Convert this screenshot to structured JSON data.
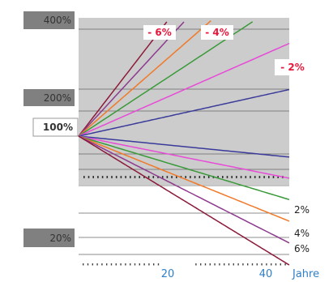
{
  "chart_data": {
    "type": "line",
    "title": "",
    "xlabel": "Jahre",
    "ylabel": "",
    "x_ticks": [
      "20",
      "40"
    ],
    "y_ticks": [
      "400%",
      "200%",
      "100%",
      "20%"
    ],
    "growth_labels": [
      "- 6%",
      "- 4%",
      "- 2%"
    ],
    "decline_labels": [
      "2%",
      "4%",
      "6%"
    ],
    "xlim": [
      0,
      43
    ],
    "series": [
      {
        "rate": 0.06,
        "color": "#8b1a3a"
      },
      {
        "rate": 0.05,
        "color": "#8e3a8e"
      },
      {
        "rate": 0.04,
        "color": "#f07a2a"
      },
      {
        "rate": 0.03,
        "color": "#3a9a3a"
      },
      {
        "rate": 0.02,
        "color": "#e84ad8"
      },
      {
        "rate": 0.01,
        "color": "#3a3a9a"
      },
      {
        "rate": -0.01,
        "color": "#3a3a9a"
      },
      {
        "rate": -0.02,
        "color": "#e84ad8"
      },
      {
        "rate": -0.03,
        "color": "#3a9a3a"
      },
      {
        "rate": -0.04,
        "color": "#f07a2a"
      },
      {
        "rate": -0.05,
        "color": "#8e3a8e"
      },
      {
        "rate": -0.06,
        "color": "#8b1a3a"
      }
    ]
  }
}
